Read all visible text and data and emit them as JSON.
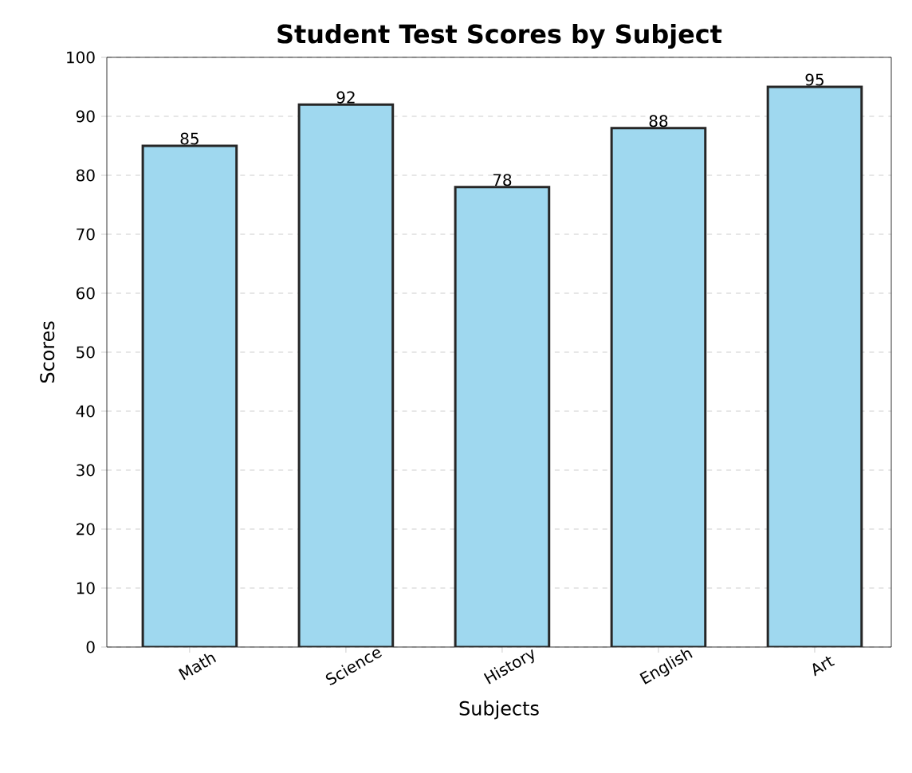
{
  "chart_data": {
    "type": "bar",
    "title": "Student Test Scores by Subject",
    "xlabel": "Subjects",
    "ylabel": "Scores",
    "categories": [
      "Math",
      "Science",
      "History",
      "English",
      "Art"
    ],
    "values": [
      85,
      92,
      78,
      88,
      95
    ],
    "color": "#9fd8ef",
    "data_labels": true,
    "grid": "y",
    "ylim": [
      0,
      100
    ],
    "yticks": [
      0,
      10,
      20,
      30,
      40,
      50,
      60,
      70,
      80,
      90,
      100
    ]
  }
}
